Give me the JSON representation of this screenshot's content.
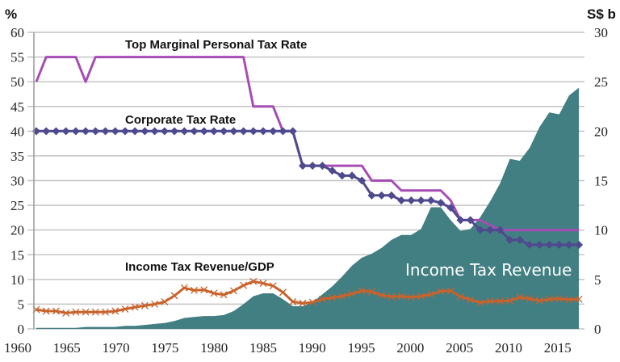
{
  "chart_data": {
    "type": "line+area",
    "left_axis": {
      "unit_label": "%",
      "range": [
        0,
        60
      ],
      "ticks": [
        0,
        5,
        10,
        15,
        20,
        25,
        30,
        35,
        40,
        45,
        50,
        55,
        60
      ]
    },
    "right_axis": {
      "unit_label": "S$ b",
      "range": [
        0,
        30
      ],
      "ticks": [
        0,
        5,
        10,
        15,
        20,
        25,
        30
      ]
    },
    "x_axis": {
      "tick_labels": [
        "1960",
        "1965",
        "1970",
        "1975",
        "1980",
        "1985",
        "1990",
        "1995",
        "2000",
        "2005",
        "2010",
        "2015"
      ]
    },
    "grid": true,
    "x": [
      1960,
      1961,
      1962,
      1963,
      1964,
      1965,
      1966,
      1967,
      1968,
      1969,
      1970,
      1971,
      1972,
      1973,
      1974,
      1975,
      1976,
      1977,
      1978,
      1979,
      1980,
      1981,
      1982,
      1983,
      1984,
      1985,
      1986,
      1987,
      1988,
      1989,
      1990,
      1991,
      1992,
      1993,
      1994,
      1995,
      1996,
      1997,
      1998,
      1999,
      2000,
      2001,
      2002,
      2003,
      2004,
      2005,
      2006,
      2007,
      2008,
      2009,
      2010,
      2011,
      2012,
      2013,
      2014,
      2015
    ],
    "series": [
      {
        "name": "Income Tax Revenue",
        "type": "area",
        "axis": "right",
        "color": "#427F83",
        "values": [
          0.1,
          0.1,
          0.1,
          0.1,
          0.1,
          0.2,
          0.2,
          0.2,
          0.2,
          0.3,
          0.3,
          0.4,
          0.5,
          0.6,
          0.8,
          1.1,
          1.2,
          1.3,
          1.3,
          1.4,
          1.8,
          2.5,
          3.3,
          3.6,
          3.6,
          3.0,
          2.3,
          2.3,
          2.7,
          3.5,
          4.3,
          5.3,
          6.4,
          7.2,
          7.6,
          8.2,
          9.0,
          9.5,
          9.5,
          10.1,
          12.3,
          12.3,
          11.0,
          9.9,
          10.1,
          11.3,
          12.9,
          14.7,
          17.2,
          17.0,
          18.3,
          20.4,
          21.9,
          21.7,
          23.6,
          24.4
        ]
      },
      {
        "name": "Top Marginal Personal Tax Rate",
        "type": "line",
        "axis": "left",
        "color": "#A64DB5",
        "values": [
          50,
          55,
          55,
          55,
          55,
          50,
          55,
          55,
          55,
          55,
          55,
          55,
          55,
          55,
          55,
          55,
          55,
          55,
          55,
          55,
          55,
          55,
          45,
          45,
          45,
          40,
          40,
          33,
          33,
          33,
          33,
          33,
          33,
          33,
          30,
          30,
          30,
          28,
          28,
          28,
          28,
          28,
          26,
          22,
          22,
          22,
          21,
          20,
          20,
          20,
          20,
          20,
          20,
          20,
          20,
          20
        ]
      },
      {
        "name": "Corporate Tax Rate",
        "type": "line",
        "marker": "diamond",
        "axis": "left",
        "color": "#4F4A8E",
        "values": [
          40,
          40,
          40,
          40,
          40,
          40,
          40,
          40,
          40,
          40,
          40,
          40,
          40,
          40,
          40,
          40,
          40,
          40,
          40,
          40,
          40,
          40,
          40,
          40,
          40,
          40,
          40,
          33,
          33,
          33,
          32,
          31,
          31,
          30,
          27,
          27,
          27,
          26,
          26,
          26,
          26,
          25.5,
          24.5,
          22,
          22,
          20,
          20,
          20,
          18,
          18,
          17,
          17,
          17,
          17,
          17,
          17
        ]
      },
      {
        "name": "Income Tax Revenue/GDP",
        "type": "line",
        "marker": "x",
        "axis": "left",
        "color": "#C9622B",
        "values": [
          3.9,
          3.6,
          3.6,
          3.2,
          3.4,
          3.4,
          3.4,
          3.4,
          3.6,
          4.0,
          4.4,
          4.7,
          5.0,
          5.5,
          6.7,
          8.3,
          7.8,
          7.9,
          7.2,
          6.9,
          7.7,
          8.8,
          9.6,
          9.2,
          8.7,
          7.4,
          5.5,
          5.2,
          5.4,
          6.0,
          6.3,
          6.6,
          7.1,
          7.7,
          7.5,
          6.8,
          6.5,
          6.6,
          6.4,
          6.6,
          7.0,
          7.6,
          7.7,
          6.5,
          5.9,
          5.3,
          5.6,
          5.6,
          5.7,
          6.4,
          6.1,
          5.7,
          6.0,
          6.1,
          5.9,
          6.0
        ]
      }
    ]
  }
}
